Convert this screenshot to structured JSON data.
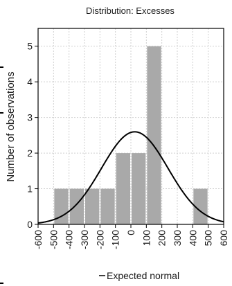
{
  "chart_data": {
    "type": "bar",
    "title": "Distribution: Excesses",
    "xlabel": "",
    "ylabel": "Number of observations",
    "xlim": [
      -600,
      600
    ],
    "ylim": [
      0,
      5.5
    ],
    "x_ticks": [
      -600,
      -500,
      -400,
      -300,
      -200,
      -100,
      0,
      100,
      200,
      300,
      400,
      500,
      600
    ],
    "y_ticks": [
      0,
      1,
      2,
      3,
      4,
      5
    ],
    "grid": true,
    "bins": [
      {
        "from": -500,
        "to": -400,
        "value": 1
      },
      {
        "from": -400,
        "to": -300,
        "value": 1
      },
      {
        "from": -300,
        "to": -200,
        "value": 1
      },
      {
        "from": -200,
        "to": -100,
        "value": 1
      },
      {
        "from": -100,
        "to": 0,
        "value": 2
      },
      {
        "from": 0,
        "to": 100,
        "value": 2
      },
      {
        "from": 100,
        "to": 200,
        "value": 5
      },
      {
        "from": 200,
        "to": 300,
        "value": 0
      },
      {
        "from": 300,
        "to": 400,
        "value": 0
      },
      {
        "from": 400,
        "to": 500,
        "value": 1
      }
    ],
    "normal_curve": {
      "name": "Expected normal",
      "mean": 25,
      "sd": 215,
      "n": 14,
      "bin_width": 100
    },
    "legend": {
      "position": "bottom",
      "entries": [
        "Expected normal"
      ]
    }
  }
}
